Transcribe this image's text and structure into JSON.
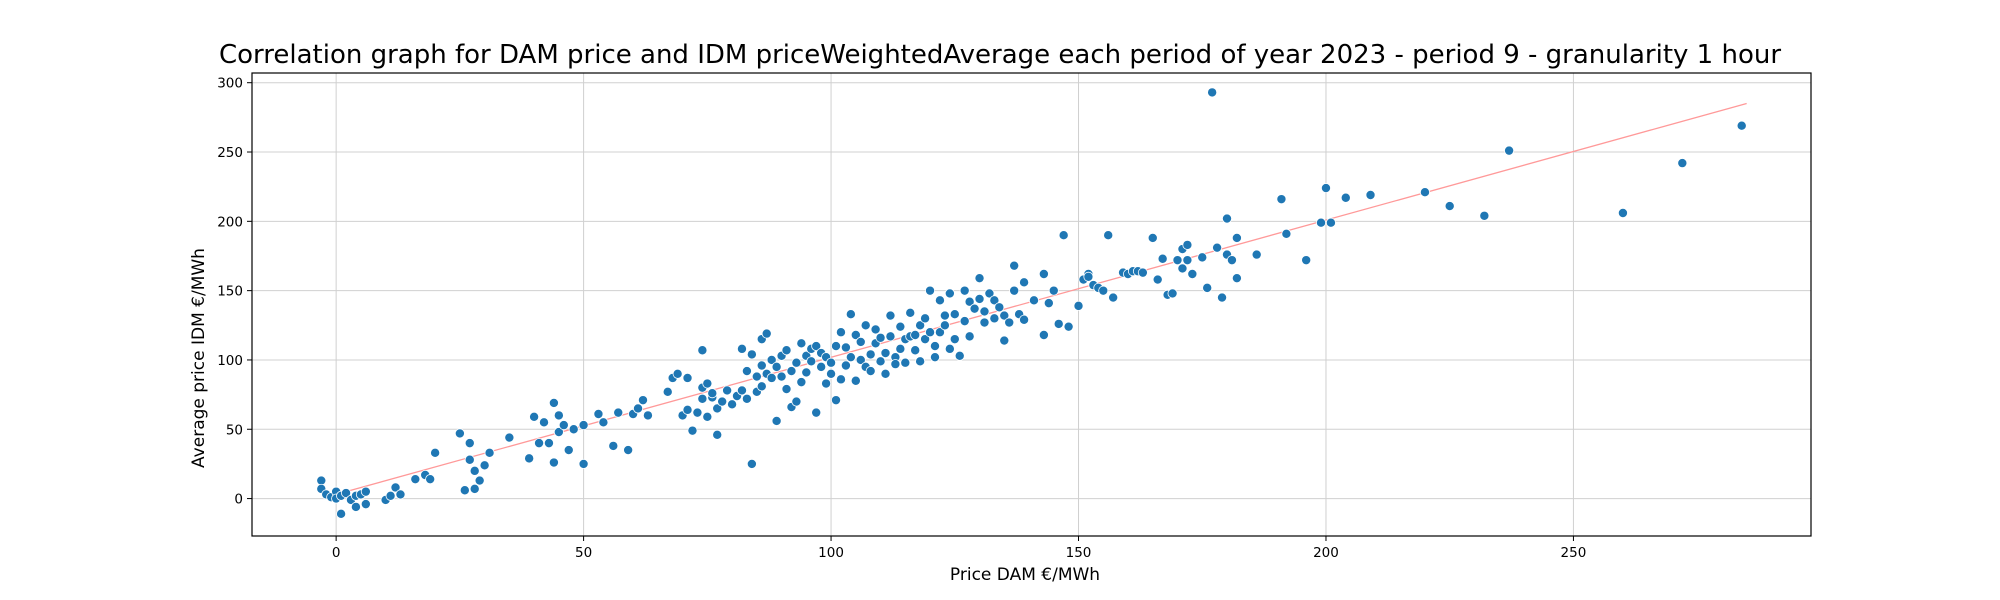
{
  "chart_data": {
    "type": "scatter",
    "title": "Correlation graph for DAM price and IDM priceWeightedAverage each period of year 2023 - period 9 - granularity 1 hour",
    "xlabel": "Price DAM €/MWh",
    "ylabel": "Average price IDM €/MWh",
    "xlim": [
      -17,
      298
    ],
    "ylim": [
      -27,
      307
    ],
    "xticks": [
      0,
      50,
      100,
      150,
      200,
      250
    ],
    "yticks": [
      0,
      50,
      100,
      150,
      200,
      250,
      300
    ],
    "grid": true,
    "colors": {
      "points": "#1f77b4",
      "trend": "#ff9999",
      "point_edge": "#ffffff"
    },
    "trendline": {
      "x": [
        0,
        285
      ],
      "y": [
        3,
        285
      ]
    },
    "series": [
      {
        "points": [
          [
            -3,
            13
          ],
          [
            -3,
            7
          ],
          [
            -2,
            3
          ],
          [
            -1,
            1
          ],
          [
            0,
            5
          ],
          [
            0,
            0
          ],
          [
            1,
            2
          ],
          [
            1,
            -11
          ],
          [
            2,
            4
          ],
          [
            3,
            -1
          ],
          [
            4,
            -6
          ],
          [
            4,
            2
          ],
          [
            5,
            3
          ],
          [
            6,
            -4
          ],
          [
            6,
            5
          ],
          [
            10,
            -1
          ],
          [
            11,
            2
          ],
          [
            12,
            8
          ],
          [
            13,
            3
          ],
          [
            16,
            14
          ],
          [
            18,
            17
          ],
          [
            19,
            14
          ],
          [
            20,
            33
          ],
          [
            25,
            47
          ],
          [
            26,
            6
          ],
          [
            27,
            40
          ],
          [
            27,
            28
          ],
          [
            28,
            20
          ],
          [
            28,
            7
          ],
          [
            29,
            13
          ],
          [
            30,
            24
          ],
          [
            31,
            33
          ],
          [
            35,
            44
          ],
          [
            39,
            29
          ],
          [
            40,
            59
          ],
          [
            41,
            40
          ],
          [
            42,
            55
          ],
          [
            43,
            40
          ],
          [
            44,
            26
          ],
          [
            44,
            69
          ],
          [
            45,
            60
          ],
          [
            45,
            48
          ],
          [
            46,
            53
          ],
          [
            47,
            35
          ],
          [
            48,
            50
          ],
          [
            50,
            25
          ],
          [
            50,
            53
          ],
          [
            53,
            61
          ],
          [
            54,
            55
          ],
          [
            56,
            38
          ],
          [
            57,
            62
          ],
          [
            59,
            35
          ],
          [
            60,
            61
          ],
          [
            61,
            65
          ],
          [
            62,
            71
          ],
          [
            63,
            60
          ],
          [
            67,
            77
          ],
          [
            68,
            87
          ],
          [
            69,
            90
          ],
          [
            70,
            60
          ],
          [
            71,
            87
          ],
          [
            71,
            64
          ],
          [
            72,
            49
          ],
          [
            73,
            62
          ],
          [
            74,
            80
          ],
          [
            74,
            107
          ],
          [
            74,
            72
          ],
          [
            75,
            59
          ],
          [
            75,
            83
          ],
          [
            76,
            73
          ],
          [
            76,
            76
          ],
          [
            77,
            65
          ],
          [
            77,
            46
          ],
          [
            78,
            70
          ],
          [
            79,
            78
          ],
          [
            80,
            68
          ],
          [
            81,
            74
          ],
          [
            82,
            108
          ],
          [
            82,
            78
          ],
          [
            83,
            92
          ],
          [
            83,
            72
          ],
          [
            84,
            25
          ],
          [
            84,
            104
          ],
          [
            85,
            88
          ],
          [
            85,
            77
          ],
          [
            86,
            115
          ],
          [
            86,
            96
          ],
          [
            86,
            81
          ],
          [
            87,
            119
          ],
          [
            87,
            90
          ],
          [
            88,
            87
          ],
          [
            88,
            100
          ],
          [
            89,
            95
          ],
          [
            89,
            56
          ],
          [
            90,
            88
          ],
          [
            90,
            103
          ],
          [
            91,
            107
          ],
          [
            91,
            79
          ],
          [
            92,
            92
          ],
          [
            92,
            66
          ],
          [
            93,
            70
          ],
          [
            93,
            98
          ],
          [
            94,
            112
          ],
          [
            94,
            84
          ],
          [
            95,
            103
          ],
          [
            95,
            91
          ],
          [
            96,
            99
          ],
          [
            96,
            108
          ],
          [
            97,
            110
          ],
          [
            97,
            62
          ],
          [
            98,
            95
          ],
          [
            98,
            105
          ],
          [
            99,
            83
          ],
          [
            99,
            102
          ],
          [
            100,
            90
          ],
          [
            100,
            98
          ],
          [
            101,
            110
          ],
          [
            101,
            71
          ],
          [
            102,
            120
          ],
          [
            102,
            86
          ],
          [
            103,
            109
          ],
          [
            103,
            96
          ],
          [
            104,
            133
          ],
          [
            104,
            102
          ],
          [
            105,
            118
          ],
          [
            105,
            85
          ],
          [
            106,
            100
          ],
          [
            106,
            113
          ],
          [
            107,
            95
          ],
          [
            107,
            125
          ],
          [
            108,
            104
          ],
          [
            108,
            92
          ],
          [
            109,
            112
          ],
          [
            109,
            122
          ],
          [
            110,
            99
          ],
          [
            110,
            116
          ],
          [
            111,
            90
          ],
          [
            111,
            105
          ],
          [
            112,
            132
          ],
          [
            112,
            117
          ],
          [
            113,
            102
          ],
          [
            113,
            97
          ],
          [
            114,
            124
          ],
          [
            114,
            108
          ],
          [
            115,
            98
          ],
          [
            115,
            115
          ],
          [
            116,
            134
          ],
          [
            116,
            117
          ],
          [
            117,
            118
          ],
          [
            117,
            107
          ],
          [
            118,
            125
          ],
          [
            118,
            99
          ],
          [
            119,
            130
          ],
          [
            119,
            115
          ],
          [
            120,
            150
          ],
          [
            120,
            120
          ],
          [
            121,
            102
          ],
          [
            121,
            110
          ],
          [
            122,
            120
          ],
          [
            122,
            143
          ],
          [
            123,
            132
          ],
          [
            123,
            125
          ],
          [
            124,
            108
          ],
          [
            124,
            148
          ],
          [
            125,
            133
          ],
          [
            125,
            115
          ],
          [
            126,
            103
          ],
          [
            127,
            150
          ],
          [
            127,
            128
          ],
          [
            128,
            142
          ],
          [
            128,
            117
          ],
          [
            129,
            137
          ],
          [
            130,
            159
          ],
          [
            130,
            144
          ],
          [
            131,
            135
          ],
          [
            131,
            127
          ],
          [
            132,
            148
          ],
          [
            133,
            130
          ],
          [
            133,
            143
          ],
          [
            134,
            138
          ],
          [
            135,
            114
          ],
          [
            135,
            132
          ],
          [
            136,
            127
          ],
          [
            137,
            168
          ],
          [
            137,
            150
          ],
          [
            138,
            133
          ],
          [
            139,
            156
          ],
          [
            139,
            129
          ],
          [
            141,
            143
          ],
          [
            143,
            162
          ],
          [
            143,
            118
          ],
          [
            144,
            141
          ],
          [
            145,
            150
          ],
          [
            146,
            126
          ],
          [
            147,
            190
          ],
          [
            148,
            124
          ],
          [
            150,
            139
          ],
          [
            151,
            158
          ],
          [
            152,
            162
          ],
          [
            152,
            160
          ],
          [
            153,
            154
          ],
          [
            154,
            152
          ],
          [
            155,
            150
          ],
          [
            156,
            190
          ],
          [
            157,
            145
          ],
          [
            159,
            163
          ],
          [
            160,
            162
          ],
          [
            161,
            164
          ],
          [
            162,
            164
          ],
          [
            163,
            163
          ],
          [
            165,
            188
          ],
          [
            166,
            158
          ],
          [
            167,
            173
          ],
          [
            168,
            147
          ],
          [
            169,
            148
          ],
          [
            170,
            172
          ],
          [
            171,
            166
          ],
          [
            171,
            180
          ],
          [
            172,
            183
          ],
          [
            172,
            172
          ],
          [
            173,
            162
          ],
          [
            175,
            174
          ],
          [
            176,
            152
          ],
          [
            177,
            293
          ],
          [
            178,
            181
          ],
          [
            179,
            145
          ],
          [
            180,
            202
          ],
          [
            180,
            176
          ],
          [
            181,
            172
          ],
          [
            182,
            188
          ],
          [
            182,
            159
          ],
          [
            186,
            176
          ],
          [
            191,
            216
          ],
          [
            192,
            191
          ],
          [
            196,
            172
          ],
          [
            199,
            199
          ],
          [
            200,
            224
          ],
          [
            201,
            199
          ],
          [
            204,
            217
          ],
          [
            209,
            219
          ],
          [
            220,
            221
          ],
          [
            225,
            211
          ],
          [
            232,
            204
          ],
          [
            237,
            251
          ],
          [
            260,
            206
          ],
          [
            272,
            242
          ],
          [
            284,
            269
          ]
        ]
      }
    ]
  }
}
